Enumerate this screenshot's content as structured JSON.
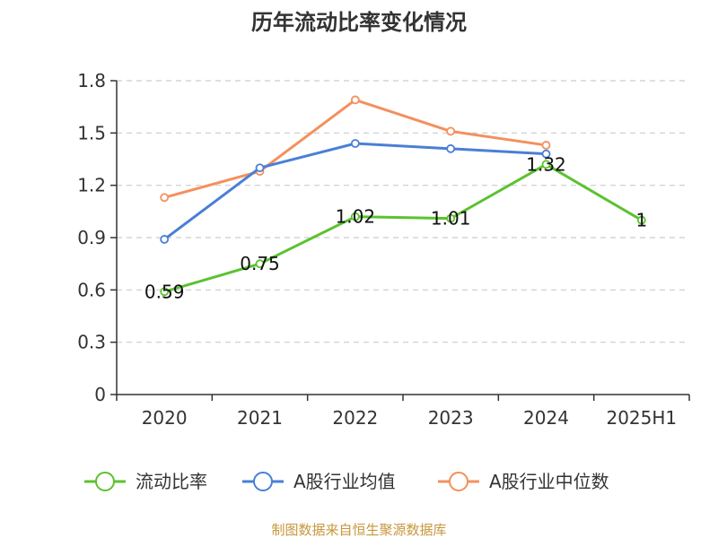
{
  "chart_data": {
    "type": "line",
    "title": "历年流动比率变化情况",
    "categories": [
      "2020",
      "2021",
      "2022",
      "2023",
      "2024",
      "2025H1"
    ],
    "ylim": [
      0,
      1.8
    ],
    "yticks": [
      "0",
      "0.3",
      "0.6",
      "0.9",
      "1.2",
      "1.5",
      "1.8"
    ],
    "ytick_values": [
      0,
      0.3,
      0.6,
      0.9,
      1.2,
      1.5,
      1.8
    ],
    "grid": true,
    "legend_position": "bottom",
    "series": [
      {
        "name": "流动比率",
        "color": "#5cc22f",
        "values": [
          0.59,
          0.75,
          1.02,
          1.01,
          1.32,
          1
        ],
        "labels": [
          "0.59",
          "0.75",
          "1.02",
          "1.01",
          "1.32",
          "1"
        ]
      },
      {
        "name": "A股行业均值",
        "color": "#4a7fd6",
        "values": [
          0.89,
          1.3,
          1.44,
          1.41,
          1.38,
          null
        ]
      },
      {
        "name": "A股行业中位数",
        "color": "#f4905c",
        "values": [
          1.13,
          1.28,
          1.69,
          1.51,
          1.43,
          null
        ]
      }
    ],
    "source": "制图数据来自恒生聚源数据库"
  }
}
